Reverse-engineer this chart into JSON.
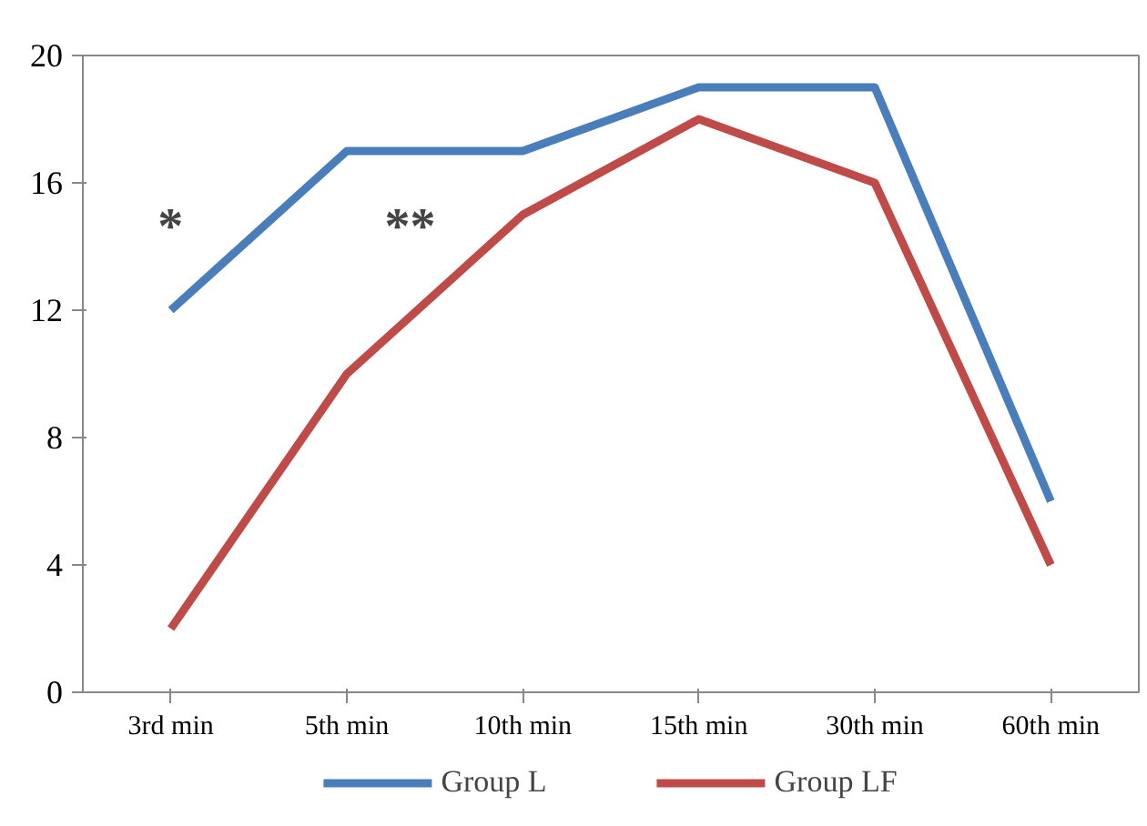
{
  "chart_data": {
    "type": "line",
    "categories": [
      "3rd min",
      "5th min",
      "10th min",
      "15th min",
      "30th min",
      "60th min"
    ],
    "series": [
      {
        "name": "Group L",
        "color": "#4a7ebb",
        "values": [
          12,
          17,
          17,
          19,
          19,
          6
        ]
      },
      {
        "name": "Group LF",
        "color": "#be4b48",
        "values": [
          2,
          10,
          15,
          18,
          16,
          4
        ]
      }
    ],
    "ylim": [
      0,
      20
    ],
    "yticks": [
      0,
      4,
      8,
      12,
      16,
      20
    ],
    "grid": false,
    "legend": "bottom",
    "marker": "none",
    "line_style": "solid",
    "annotations": [
      "*",
      "**"
    ]
  }
}
